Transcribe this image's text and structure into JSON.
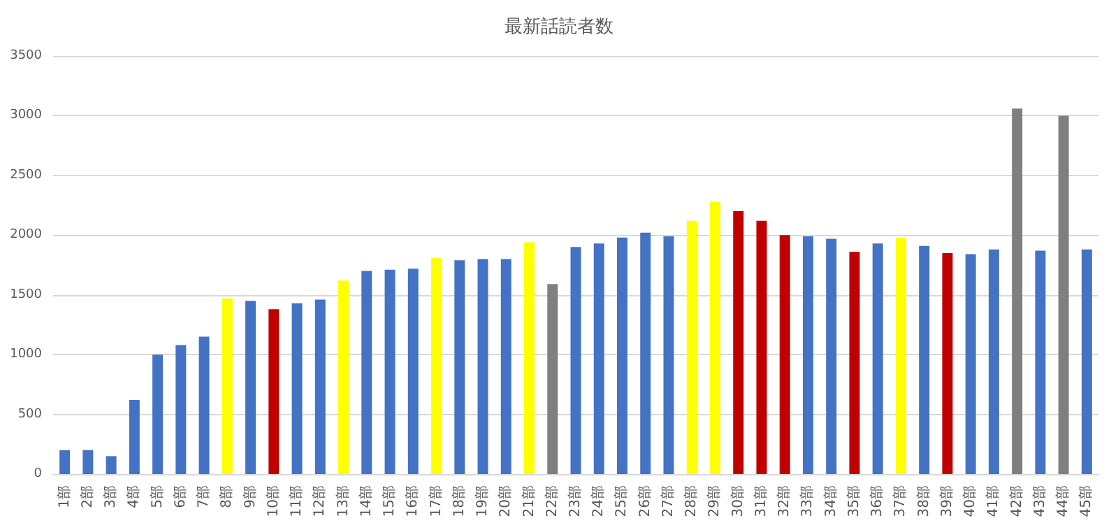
{
  "chart_data": {
    "type": "bar",
    "title": "最新話読者数",
    "categories": [
      "1部",
      "2部",
      "3部",
      "4部",
      "5部",
      "6部",
      "7部",
      "8部",
      "9部",
      "10部",
      "11部",
      "12部",
      "13部",
      "14部",
      "15部",
      "16部",
      "17部",
      "18部",
      "19部",
      "20部",
      "21部",
      "22部",
      "23部",
      "24部",
      "25部",
      "26部",
      "27部",
      "28部",
      "29部",
      "30部",
      "31部",
      "32部",
      "33部",
      "34部",
      "35部",
      "36部",
      "37部",
      "38部",
      "39部",
      "40部",
      "41部",
      "42部",
      "43部",
      "44部",
      "45部"
    ],
    "values": [
      200,
      200,
      150,
      620,
      1000,
      1080,
      1150,
      1470,
      1450,
      1380,
      1430,
      1460,
      1620,
      1700,
      1710,
      1720,
      1810,
      1790,
      1800,
      1800,
      1940,
      1590,
      1900,
      1930,
      1980,
      2020,
      1990,
      2120,
      2280,
      2200,
      2120,
      2000,
      1990,
      1970,
      1860,
      1930,
      1980,
      1910,
      1850,
      1840,
      1880,
      3060,
      1870,
      3000,
      1880
    ],
    "colors": [
      "#4472c4",
      "#4472c4",
      "#4472c4",
      "#4472c4",
      "#4472c4",
      "#4472c4",
      "#4472c4",
      "#ffff00",
      "#4472c4",
      "#c00000",
      "#4472c4",
      "#4472c4",
      "#ffff00",
      "#4472c4",
      "#4472c4",
      "#4472c4",
      "#ffff00",
      "#4472c4",
      "#4472c4",
      "#4472c4",
      "#ffff00",
      "#7f7f7f",
      "#4472c4",
      "#4472c4",
      "#4472c4",
      "#4472c4",
      "#4472c4",
      "#ffff00",
      "#ffff00",
      "#c00000",
      "#c00000",
      "#c00000",
      "#4472c4",
      "#4472c4",
      "#c00000",
      "#4472c4",
      "#ffff00",
      "#4472c4",
      "#c00000",
      "#4472c4",
      "#4472c4",
      "#7f7f7f",
      "#4472c4",
      "#7f7f7f",
      "#4472c4"
    ],
    "ylim": [
      0,
      3500
    ],
    "yticks": [
      0,
      500,
      1000,
      1500,
      2000,
      2500,
      3000,
      3500
    ],
    "grid": "y"
  }
}
